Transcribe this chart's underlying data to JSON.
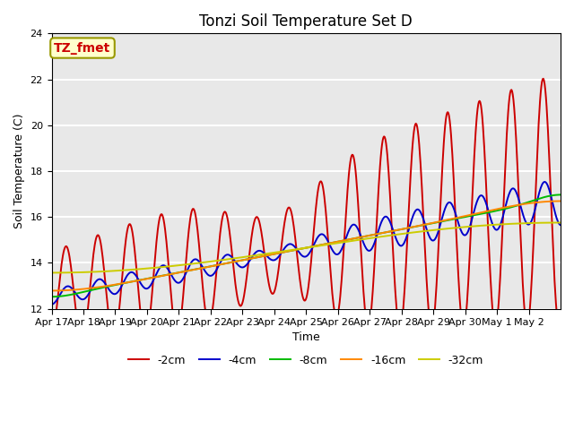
{
  "title": "Tonzi Soil Temperature Set D",
  "xlabel": "Time",
  "ylabel": "Soil Temperature (C)",
  "ylim": [
    12,
    24
  ],
  "yticks": [
    12,
    14,
    16,
    18,
    20,
    22,
    24
  ],
  "series_labels": [
    "-2cm",
    "-4cm",
    "-8cm",
    "-16cm",
    "-32cm"
  ],
  "series_colors": [
    "#cc0000",
    "#0000cc",
    "#00bb00",
    "#ff8800",
    "#cccc00"
  ],
  "series_linewidths": [
    1.4,
    1.4,
    1.4,
    1.4,
    1.4
  ],
  "annotation_text": "TZ_fmet",
  "annotation_color": "#cc0000",
  "annotation_bg": "#ffffcc",
  "annotation_edge": "#999900",
  "background_color": "#e8e8e8",
  "grid_color": "#ffffff",
  "xtick_labels": [
    "Apr 17",
    "Apr 18",
    "Apr 19",
    "Apr 20",
    "Apr 21",
    "Apr 22",
    "Apr 23",
    "Apr 24",
    "Apr 25",
    "Apr 26",
    "Apr 27",
    "Apr 28",
    "Apr 29",
    "Apr 30",
    "May 1",
    "May 2"
  ],
  "n_days": 16,
  "pts_per_day": 48,
  "title_fontsize": 12,
  "axis_fontsize": 9,
  "tick_fontsize": 8,
  "legend_fontsize": 9
}
